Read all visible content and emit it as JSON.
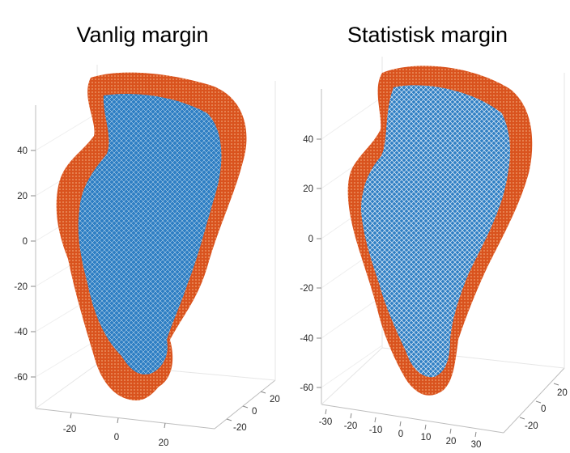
{
  "panels": [
    {
      "title": "Vanlig margin",
      "z_ticks": [
        "40",
        "20",
        "0",
        "-20",
        "-40",
        "-60"
      ],
      "x_ticks": [
        "-20",
        "0",
        "20"
      ],
      "y_ticks": [
        "20",
        "0",
        "-20"
      ]
    },
    {
      "title": "Statistisk margin",
      "z_ticks": [
        "40",
        "20",
        "0",
        "-20",
        "-40",
        "-60"
      ],
      "x_ticks": [
        "-30",
        "-20",
        "-10",
        "0",
        "10",
        "20",
        "30"
      ],
      "y_ticks": [
        "20",
        "0",
        "-20"
      ]
    }
  ],
  "colors": {
    "outer_margin": "#d9531e",
    "inner_volume": "#2f7fc4",
    "axis": "#bdbdbd",
    "grid": "#e6e6e6"
  }
}
